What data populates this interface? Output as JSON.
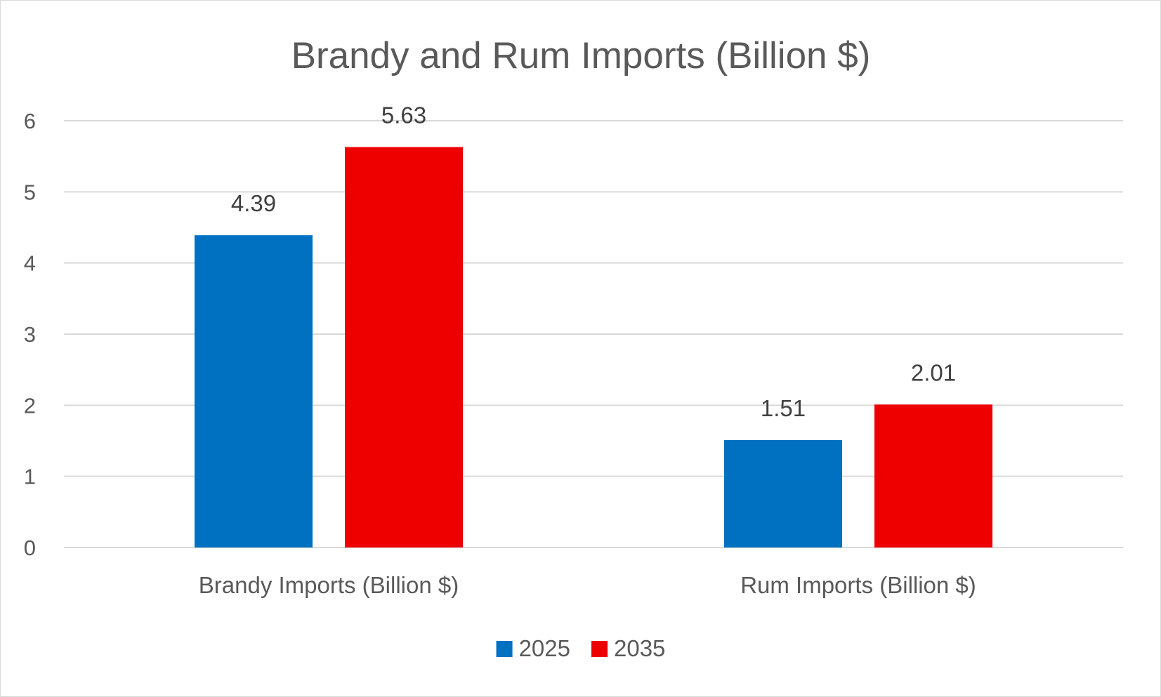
{
  "chart_data": {
    "type": "bar",
    "title": "Brandy and Rum Imports (Billion $)",
    "categories": [
      "Brandy Imports (Billion $)",
      "Rum Imports (Billion $)"
    ],
    "series": [
      {
        "name": "2025",
        "values": [
          4.39,
          1.51
        ],
        "color": "#0070C0"
      },
      {
        "name": "2035",
        "values": [
          5.63,
          2.01
        ],
        "color": "#EE0000"
      }
    ],
    "data_labels": [
      [
        "4.39",
        "1.51"
      ],
      [
        "5.63",
        "2.01"
      ]
    ],
    "y_ticks": [
      "0",
      "1",
      "2",
      "3",
      "4",
      "5",
      "6"
    ],
    "ylim": [
      0,
      6
    ],
    "grid": true,
    "legend_position": "bottom",
    "xlabel": "",
    "ylabel": ""
  }
}
